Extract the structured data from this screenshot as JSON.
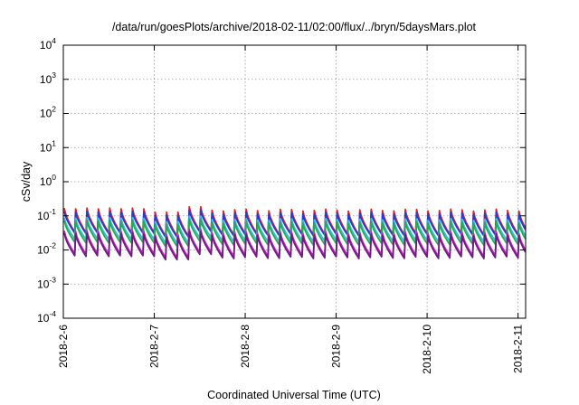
{
  "chart_data": {
    "type": "line",
    "title": "/data/run/goesPlots/archive/2018-02-11/02:00/flux/../bryn/5daysMars.plot",
    "xlabel": "Coordinated Universal Time (UTC)",
    "ylabel": "cSv/day",
    "y_scale": "log",
    "ylim": [
      0.0001,
      10000
    ],
    "y_ticks": [
      {
        "base": "10",
        "exp": "4",
        "value": 10000
      },
      {
        "base": "10",
        "exp": "3",
        "value": 1000
      },
      {
        "base": "10",
        "exp": "2",
        "value": 100
      },
      {
        "base": "10",
        "exp": "1",
        "value": 10
      },
      {
        "base": "10",
        "exp": "0",
        "value": 1
      },
      {
        "base": "10",
        "exp": "-1",
        "value": 0.1
      },
      {
        "base": "10",
        "exp": "-2",
        "value": 0.01
      },
      {
        "base": "10",
        "exp": "-3",
        "value": 0.001
      },
      {
        "base": "10",
        "exp": "-4",
        "value": 0.0001
      }
    ],
    "x_ticks": [
      "2018-2-6",
      "2018-2-7",
      "2018-2-8",
      "2018-2-9",
      "2018-2-10",
      "2018-2-11"
    ],
    "xlim": [
      "2018-02-06 00:00",
      "2018-02-11 02:00"
    ],
    "grid": true,
    "legend": "none",
    "series": [
      {
        "color": "#e8202a",
        "peak": 0.16,
        "trough": 0.032
      },
      {
        "color": "#1e3fd0",
        "peak": 0.13,
        "trough": 0.03
      },
      {
        "color": "#2fc0d8",
        "peak": 0.085,
        "trough": 0.02
      },
      {
        "color": "#2aa850",
        "peak": 0.07,
        "trough": 0.016
      },
      {
        "color": "#d020d0",
        "peak": 0.035,
        "trough": 0.0075
      },
      {
        "color": "#6a1f7a",
        "peak": 0.03,
        "trough": 0.0065
      }
    ],
    "cycles_per_day": 8,
    "data_note_visible": false
  }
}
